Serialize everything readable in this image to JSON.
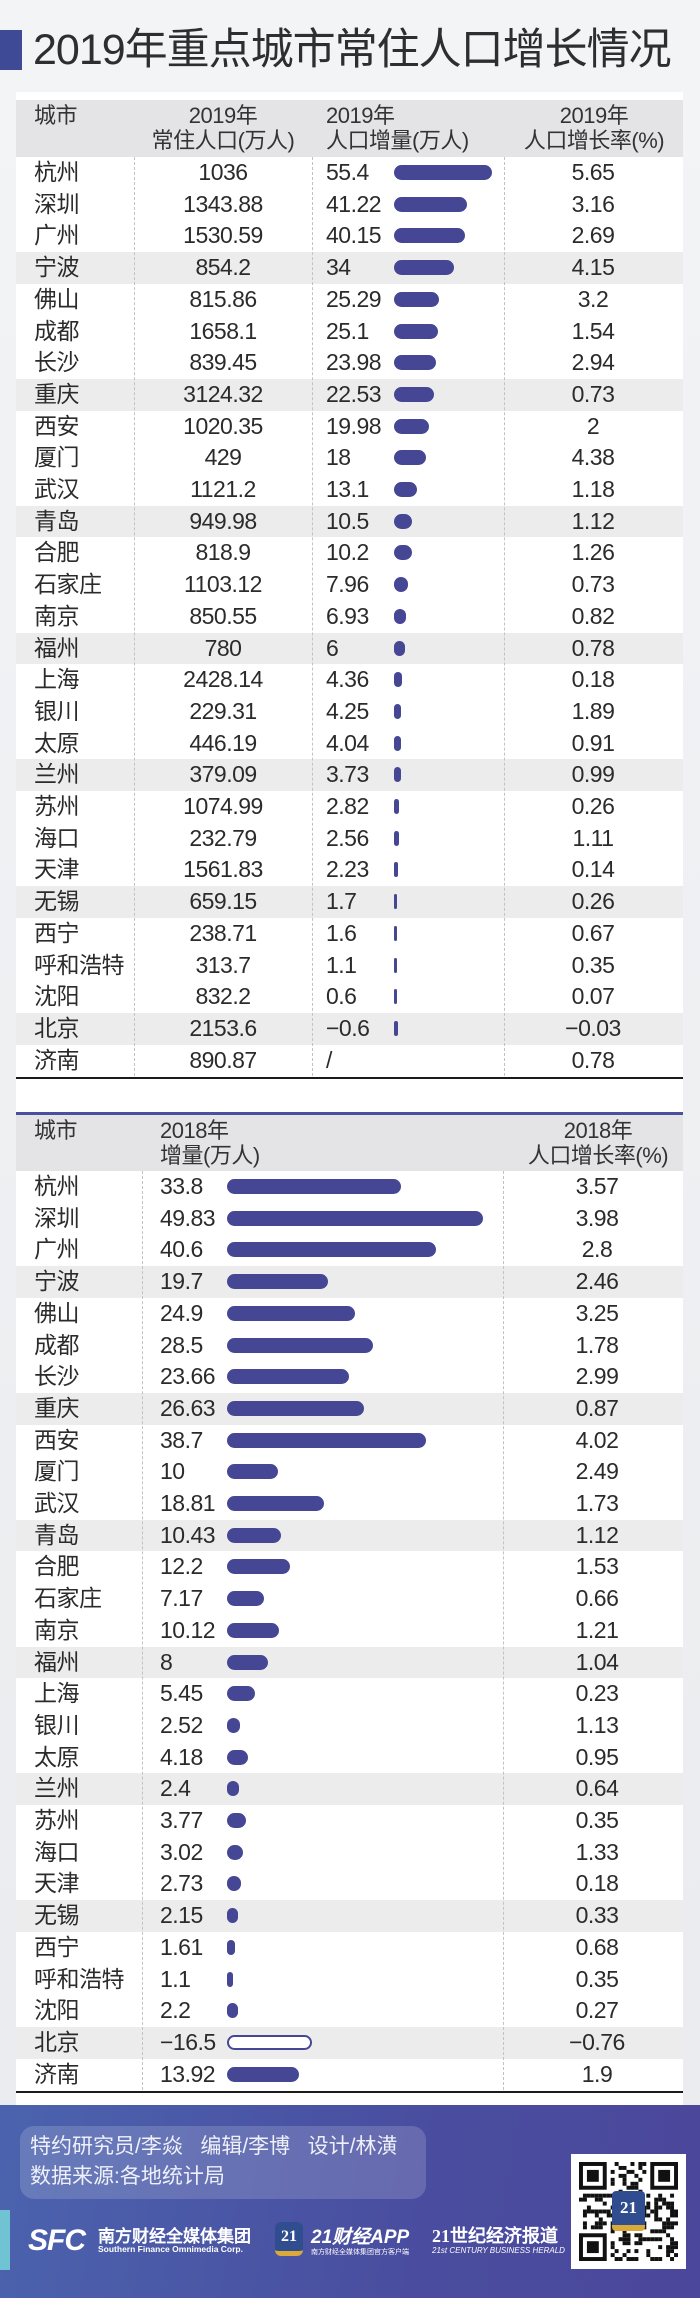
{
  "title": "2019年重点城市常住人口增长情况",
  "colors": {
    "bar": "#454795",
    "accent": "#3f4a96",
    "header_bg": "#e4e4e6"
  },
  "chart_data": [
    {
      "type": "table",
      "title": "2019年重点城市常住人口增长情况",
      "headers": {
        "city": "城市",
        "pop_l1": "2019年",
        "pop_l2": "常住人口(万人)",
        "inc_l1": "2019年",
        "inc_l2": "人口增量(万人)",
        "rate_l1": "2019年",
        "rate_l2": "人口增长率(%)"
      },
      "rows": [
        {
          "city": "杭州",
          "pop": "1036",
          "inc": "55.4",
          "rate": "5.65"
        },
        {
          "city": "深圳",
          "pop": "1343.88",
          "inc": "41.22",
          "rate": "3.16"
        },
        {
          "city": "广州",
          "pop": "1530.59",
          "inc": "40.15",
          "rate": "2.69"
        },
        {
          "city": "宁波",
          "pop": "854.2",
          "inc": "34",
          "rate": "4.15"
        },
        {
          "city": "佛山",
          "pop": "815.86",
          "inc": "25.29",
          "rate": "3.2"
        },
        {
          "city": "成都",
          "pop": "1658.1",
          "inc": "25.1",
          "rate": "1.54"
        },
        {
          "city": "长沙",
          "pop": "839.45",
          "inc": "23.98",
          "rate": "2.94"
        },
        {
          "city": "重庆",
          "pop": "3124.32",
          "inc": "22.53",
          "rate": "0.73"
        },
        {
          "city": "西安",
          "pop": "1020.35",
          "inc": "19.98",
          "rate": "2"
        },
        {
          "city": "厦门",
          "pop": "429",
          "inc": "18",
          "rate": "4.38"
        },
        {
          "city": "武汉",
          "pop": "1121.2",
          "inc": "13.1",
          "rate": "1.18"
        },
        {
          "city": "青岛",
          "pop": "949.98",
          "inc": "10.5",
          "rate": "1.12"
        },
        {
          "city": "合肥",
          "pop": "818.9",
          "inc": "10.2",
          "rate": "1.26"
        },
        {
          "city": "石家庄",
          "pop": "1103.12",
          "inc": "7.96",
          "rate": "0.73"
        },
        {
          "city": "南京",
          "pop": "850.55",
          "inc": "6.93",
          "rate": "0.82"
        },
        {
          "city": "福州",
          "pop": "780",
          "inc": "6",
          "rate": "0.78"
        },
        {
          "city": "上海",
          "pop": "2428.14",
          "inc": "4.36",
          "rate": "0.18"
        },
        {
          "city": "银川",
          "pop": "229.31",
          "inc": "4.25",
          "rate": "1.89"
        },
        {
          "city": "太原",
          "pop": "446.19",
          "inc": "4.04",
          "rate": "0.91"
        },
        {
          "city": "兰州",
          "pop": "379.09",
          "inc": "3.73",
          "rate": "0.99"
        },
        {
          "city": "苏州",
          "pop": "1074.99",
          "inc": "2.82",
          "rate": "0.26"
        },
        {
          "city": "海口",
          "pop": "232.79",
          "inc": "2.56",
          "rate": "1.11"
        },
        {
          "city": "天津",
          "pop": "1561.83",
          "inc": "2.23",
          "rate": "0.14"
        },
        {
          "city": "无锡",
          "pop": "659.15",
          "inc": "1.7",
          "rate": "0.26"
        },
        {
          "city": "西宁",
          "pop": "238.71",
          "inc": "1.6",
          "rate": "0.67"
        },
        {
          "city": "呼和浩特",
          "pop": "313.7",
          "inc": "1.1",
          "rate": "0.35"
        },
        {
          "city": "沈阳",
          "pop": "832.2",
          "inc": "0.6",
          "rate": "0.07"
        },
        {
          "city": "北京",
          "pop": "2153.6",
          "inc": "−0.6",
          "rate": "−0.03"
        },
        {
          "city": "济南",
          "pop": "890.87",
          "inc": "/",
          "rate": "0.78"
        }
      ]
    },
    {
      "type": "table",
      "headers": {
        "city": "城市",
        "inc_l1": "2018年",
        "inc_l2": "增量(万人)",
        "rate_l1": "2018年",
        "rate_l2": "人口增长率(%)"
      },
      "rows": [
        {
          "city": "杭州",
          "inc": "33.8",
          "rate": "3.57"
        },
        {
          "city": "深圳",
          "inc": "49.83",
          "rate": "3.98"
        },
        {
          "city": "广州",
          "inc": "40.6",
          "rate": "2.8"
        },
        {
          "city": "宁波",
          "inc": "19.7",
          "rate": "2.46"
        },
        {
          "city": "佛山",
          "inc": "24.9",
          "rate": "3.25"
        },
        {
          "city": "成都",
          "inc": "28.5",
          "rate": "1.78"
        },
        {
          "city": "长沙",
          "inc": "23.66",
          "rate": "2.99"
        },
        {
          "city": "重庆",
          "inc": "26.63",
          "rate": "0.87"
        },
        {
          "city": "西安",
          "inc": "38.7",
          "rate": "4.02"
        },
        {
          "city": "厦门",
          "inc": "10",
          "rate": "2.49"
        },
        {
          "city": "武汉",
          "inc": "18.81",
          "rate": "1.73"
        },
        {
          "city": "青岛",
          "inc": "10.43",
          "rate": "1.12"
        },
        {
          "city": "合肥",
          "inc": "12.2",
          "rate": "1.53"
        },
        {
          "city": "石家庄",
          "inc": "7.17",
          "rate": "0.66"
        },
        {
          "city": "南京",
          "inc": "10.12",
          "rate": "1.21"
        },
        {
          "city": "福州",
          "inc": "8",
          "rate": "1.04"
        },
        {
          "city": "上海",
          "inc": "5.45",
          "rate": "0.23"
        },
        {
          "city": "银川",
          "inc": "2.52",
          "rate": "1.13"
        },
        {
          "city": "太原",
          "inc": "4.18",
          "rate": "0.95"
        },
        {
          "city": "兰州",
          "inc": "2.4",
          "rate": "0.64"
        },
        {
          "city": "苏州",
          "inc": "3.77",
          "rate": "0.35"
        },
        {
          "city": "海口",
          "inc": "3.02",
          "rate": "1.33"
        },
        {
          "city": "天津",
          "inc": "2.73",
          "rate": "0.18"
        },
        {
          "city": "无锡",
          "inc": "2.15",
          "rate": "0.33"
        },
        {
          "city": "西宁",
          "inc": "1.61",
          "rate": "0.68"
        },
        {
          "city": "呼和浩特",
          "inc": "1.1",
          "rate": "0.35"
        },
        {
          "city": "沈阳",
          "inc": "2.2",
          "rate": "0.27"
        },
        {
          "city": "北京",
          "inc": "−16.5",
          "rate": "−0.76"
        },
        {
          "city": "济南",
          "inc": "13.92",
          "rate": "1.9"
        }
      ]
    }
  ],
  "footer": {
    "credits_line1": "特约研究员/李焱   编辑/李博   设计/林潢",
    "credits_line2": "数据来源:各地统计局",
    "sfc_mark": "SFC",
    "sfc_name": "南方财经全媒体集团",
    "sfc_en": "Southern Finance Omnimedia Corp.",
    "app_badge": "21",
    "app_name": "21财经APP",
    "app_sub": "南方财经全媒体集团官方客户端",
    "herald_name": "21世纪经济报道",
    "herald_en": "21st CENTURY BUSINESS HERALD",
    "qr_badge": "21"
  }
}
